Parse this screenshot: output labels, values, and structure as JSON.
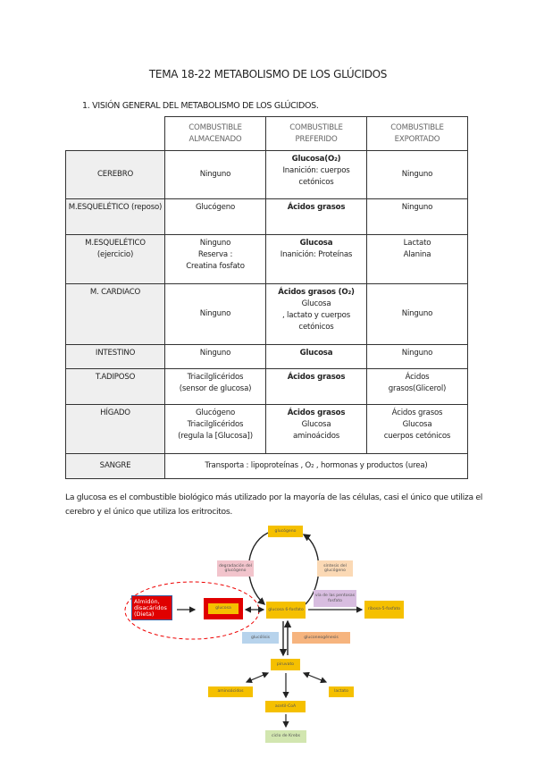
{
  "title": "TEMA 18-22 METABOLISMO DE LOS GLÚCIDOS",
  "section": "1.   VISIÓN GENERAL DEL METABOLISMO DE LOS GLÚCIDOS.",
  "table": {
    "headers": [
      "COMBUSTIBLE ALMACENADO",
      "COMBUSTIBLE PREFERIDO",
      "COMBUSTIBLE EXPORTADO"
    ],
    "rows": [
      {
        "organ": "CEREBRO",
        "stored": [
          "Ninguno"
        ],
        "preferred_bold": "Glucosa(O₂)",
        "preferred": [
          "Inanición: cuerpos cetónicos"
        ],
        "exported": [
          "Ninguno"
        ]
      },
      {
        "organ": "M.ESQUELÉTICO (reposo)",
        "stored": [
          "Glucógeno"
        ],
        "preferred_bold": "Ácidos grasos",
        "preferred": [],
        "exported": [
          "Ninguno"
        ]
      },
      {
        "organ": "M.ESQUELÉTICO (ejercicio)",
        "stored": [
          "Ninguno",
          "Reserva :",
          "Creatina fosfato"
        ],
        "preferred_bold": "Glucosa",
        "preferred": [
          "Inanición: Proteínas"
        ],
        "exported": [
          "Lactato",
          "Alanina"
        ]
      },
      {
        "organ": "M. CARDIACO",
        "stored": [
          "Ninguno"
        ],
        "preferred_bold": "Ácidos grasos (O₂)",
        "preferred": [
          "Glucosa",
          ", lactato y  cuerpos cetónicos"
        ],
        "exported": [
          "Ninguno"
        ]
      },
      {
        "organ": "INTESTINO",
        "stored": [
          "Ninguno"
        ],
        "preferred_bold": "Glucosa",
        "preferred": [],
        "exported": [
          "Ninguno"
        ]
      },
      {
        "organ": "T.ADIPOSO",
        "stored": [
          "Triacilglicéridos",
          "(sensor de glucosa)"
        ],
        "preferred_bold": "Ácidos grasos",
        "preferred": [],
        "exported": [
          "Ácidos",
          "grasos(Glicerol)"
        ]
      },
      {
        "organ": "HÍGADO",
        "stored": [
          "Glucógeno",
          "Triacilglicéridos",
          "(regula la [Glucosa])"
        ],
        "preferred_bold": "Ácidos grasos",
        "preferred": [
          "Glucosa",
          "aminoácidos"
        ],
        "exported": [
          "Ácidos grasos",
          "Glucosa",
          "cuerpos cetónicos"
        ]
      }
    ],
    "blood": {
      "organ": "SANGRE",
      "text": "Transporta : lipoproteínas , O₂ , hormonas y productos (urea)"
    }
  },
  "paragraph": "La glucosa es el combustible biológico más utilizado por la mayoría de las células, casi el único que utiliza el cerebro y el único que utiliza los eritrocitos.",
  "diagram": {
    "glycogen": "glucógeno",
    "degradation": "degradación del glucógeno",
    "synthesis": "síntesis del glucógeno",
    "diet": "Almidón, disacáridos (Dieta)",
    "glucose": "glucosa",
    "g6p": "glucosa 6-fosfato",
    "pentose": "vía de las pentosas fosfato",
    "ribose": "ribosa-5-fosfato",
    "glycolysis": "glucólisis",
    "gluconeogenesis": "gluconeogénesis",
    "pyruvate": "piruvato",
    "amino": "aminoácidos",
    "lactate": "lactato",
    "acetyl": "acetil-CoA",
    "krebs": "ciclo de Krebs",
    "colors": {
      "yellow": "#f5c000",
      "red": "#e00000",
      "pink": "#f2c4cc",
      "peach": "#fbd9b5",
      "purple": "#d8bde0",
      "blue": "#b7d3ec",
      "orange": "#f6b47e",
      "green": "#d2e6b0"
    }
  }
}
